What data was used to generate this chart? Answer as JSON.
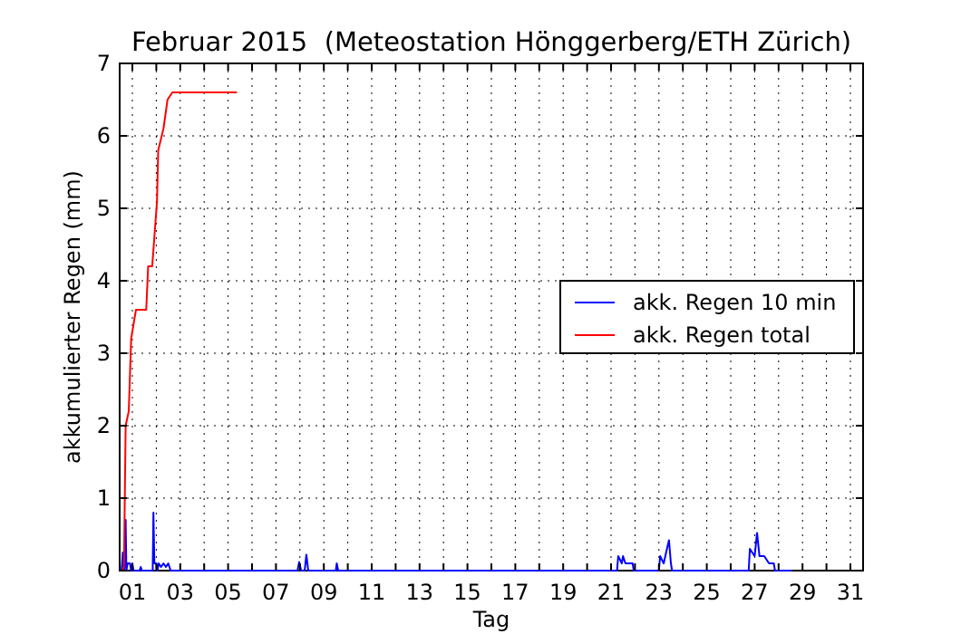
{
  "chart_data": {
    "type": "line",
    "title": "Februar 2015  (Meteostation Hönggerberg/ETH Zürich)",
    "xlabel": "Tag",
    "ylabel": "akkumulierter Regen (mm)",
    "xlim": [
      0.47,
      31.53
    ],
    "ylim": [
      0,
      7
    ],
    "yticks": [
      0,
      1,
      2,
      3,
      4,
      5,
      6,
      7
    ],
    "xticks": [
      {
        "value": 1,
        "label": "01"
      },
      {
        "value": 2,
        "label": null
      },
      {
        "value": 3,
        "label": "03"
      },
      {
        "value": 4,
        "label": null
      },
      {
        "value": 5,
        "label": "05"
      },
      {
        "value": 6,
        "label": null
      },
      {
        "value": 7,
        "label": "07"
      },
      {
        "value": 8,
        "label": null
      },
      {
        "value": 9,
        "label": "09"
      },
      {
        "value": 10,
        "label": null
      },
      {
        "value": 11,
        "label": "11"
      },
      {
        "value": 12,
        "label": null
      },
      {
        "value": 13,
        "label": "13"
      },
      {
        "value": 14,
        "label": null
      },
      {
        "value": 15,
        "label": "15"
      },
      {
        "value": 16,
        "label": null
      },
      {
        "value": 17,
        "label": "17"
      },
      {
        "value": 18,
        "label": null
      },
      {
        "value": 19,
        "label": "19"
      },
      {
        "value": 20,
        "label": null
      },
      {
        "value": 21,
        "label": "21"
      },
      {
        "value": 22,
        "label": null
      },
      {
        "value": 23,
        "label": "23"
      },
      {
        "value": 24,
        "label": null
      },
      {
        "value": 25,
        "label": "25"
      },
      {
        "value": 26,
        "label": null
      },
      {
        "value": 27,
        "label": "27"
      },
      {
        "value": 28,
        "label": null
      },
      {
        "value": 29,
        "label": "29"
      },
      {
        "value": 30,
        "label": null
      },
      {
        "value": 31,
        "label": "31"
      }
    ],
    "grid": true,
    "legend": "right",
    "line_style": "solid",
    "marker": "none",
    "series": [
      {
        "name": "akk. Regen 10 min",
        "color": "#0000ff",
        "x": [
          0.55,
          0.6,
          0.65,
          0.7,
          0.72,
          0.75,
          0.8,
          0.9,
          0.95,
          1.0,
          1.05,
          1.3,
          1.35,
          1.4,
          1.85,
          1.88,
          1.92,
          2.0,
          2.05,
          2.1,
          2.2,
          2.3,
          2.4,
          2.5,
          2.6,
          7.9,
          7.97,
          8.05,
          8.2,
          8.27,
          8.35,
          9.5,
          9.54,
          9.6,
          21.25,
          21.3,
          21.45,
          21.5,
          21.6,
          21.7,
          21.9,
          21.95,
          23.0,
          23.05,
          23.2,
          23.3,
          23.42,
          23.5,
          23.55,
          26.75,
          26.8,
          27.0,
          27.1,
          27.2,
          27.4,
          27.6,
          27.8,
          27.85,
          28.55
        ],
        "values": [
          0,
          0.25,
          0,
          0.1,
          0.7,
          0,
          0.1,
          0.1,
          0,
          0.1,
          0,
          0,
          0.05,
          0,
          0,
          0.8,
          0.1,
          0.1,
          0,
          0.1,
          0.05,
          0.1,
          0.05,
          0.1,
          0,
          0,
          0.12,
          0,
          0,
          0.22,
          0,
          0,
          0.1,
          0,
          0,
          0.2,
          0.1,
          0.2,
          0.1,
          0.1,
          0.1,
          0,
          0,
          0.2,
          0.1,
          0.25,
          0.42,
          0.1,
          0,
          0,
          0.3,
          0.2,
          0.52,
          0.2,
          0.2,
          0.1,
          0.1,
          0,
          0
        ]
      },
      {
        "name": "akk. Regen total",
        "color": "#ff0000",
        "x": [
          0.6,
          0.65,
          0.72,
          0.85,
          0.95,
          1.15,
          1.58,
          1.66,
          1.83,
          2.03,
          2.08,
          2.3,
          2.47,
          2.67,
          5.37
        ],
        "values": [
          0,
          0.05,
          2.0,
          2.2,
          3.2,
          3.6,
          3.6,
          4.2,
          4.2,
          5.1,
          5.8,
          6.1,
          6.5,
          6.6,
          6.6
        ]
      }
    ]
  }
}
